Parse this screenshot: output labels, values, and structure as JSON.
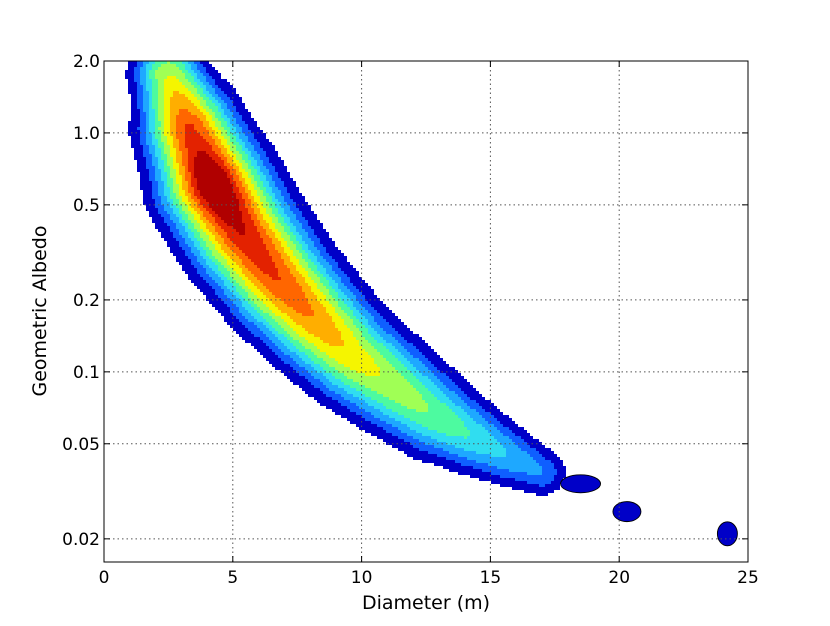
{
  "chart_data": {
    "type": "contour",
    "title": "",
    "xlabel": "Diameter (m)",
    "ylabel": "Geometric Albedo",
    "xlim": [
      0,
      25
    ],
    "ylim": [
      0.016,
      2.0
    ],
    "yscale": "log",
    "grid": true,
    "xticks": [
      0,
      5,
      10,
      15,
      20,
      25
    ],
    "xtick_labels": [
      "0",
      "5",
      "10",
      "15",
      "20",
      "25"
    ],
    "yticks": [
      0.02,
      0.05,
      0.1,
      0.2,
      0.5,
      1.0,
      2.0
    ],
    "ytick_labels": [
      "0.02",
      "0.05",
      "0.1",
      "0.2",
      "0.5",
      "1.0",
      "2.0"
    ],
    "colormap": [
      "#0000c8",
      "#0f5fff",
      "#1ea8ff",
      "#30ddf0",
      "#4dfaa0",
      "#a0ff55",
      "#f5f500",
      "#ffae00",
      "#ff6600",
      "#e32200",
      "#b00000"
    ],
    "ridge": [
      {
        "x": 2.5,
        "y": 1.75
      },
      {
        "x": 3.3,
        "y": 1.05
      },
      {
        "x": 4.2,
        "y": 0.62
      },
      {
        "x": 5.4,
        "y": 0.38
      },
      {
        "x": 6.8,
        "y": 0.24
      },
      {
        "x": 8.2,
        "y": 0.165
      },
      {
        "x": 9.6,
        "y": 0.118
      },
      {
        "x": 11.2,
        "y": 0.088
      },
      {
        "x": 12.8,
        "y": 0.066
      },
      {
        "x": 14.2,
        "y": 0.054
      },
      {
        "x": 15.6,
        "y": 0.045
      },
      {
        "x": 17.0,
        "y": 0.038
      }
    ],
    "peak": {
      "x": 4.3,
      "y": 0.6
    },
    "islands": [
      {
        "x": 18.5,
        "y": 0.034
      },
      {
        "x": 20.3,
        "y": 0.026
      },
      {
        "x": 24.2,
        "y": 0.021
      }
    ]
  }
}
